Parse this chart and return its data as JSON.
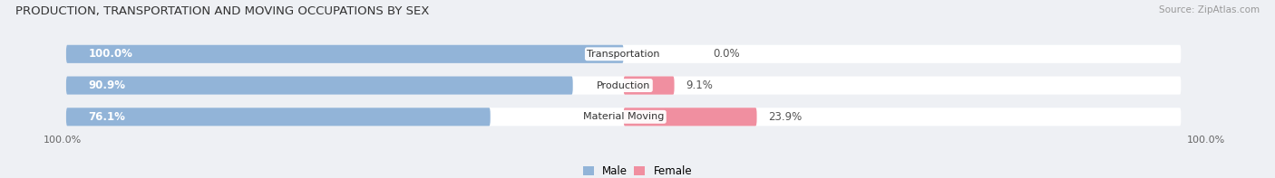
{
  "title": "PRODUCTION, TRANSPORTATION AND MOVING OCCUPATIONS BY SEX",
  "source": "Source: ZipAtlas.com",
  "categories": [
    "Transportation",
    "Production",
    "Material Moving"
  ],
  "male_pct": [
    100.0,
    90.9,
    76.1
  ],
  "female_pct": [
    0.0,
    9.1,
    23.9
  ],
  "male_color": "#92b4d8",
  "female_color": "#f08fa0",
  "bg_color": "#eef0f4",
  "bar_bg_color": "#dde1ea",
  "title_fontsize": 9.5,
  "label_fontsize": 8.5,
  "tick_fontsize": 8,
  "source_fontsize": 7.5,
  "bar_height": 0.58,
  "figsize": [
    14.06,
    1.97
  ],
  "dpi": 100,
  "x_left_label": "100.0%",
  "x_right_label": "100.0%",
  "legend_labels": [
    "Male",
    "Female"
  ]
}
